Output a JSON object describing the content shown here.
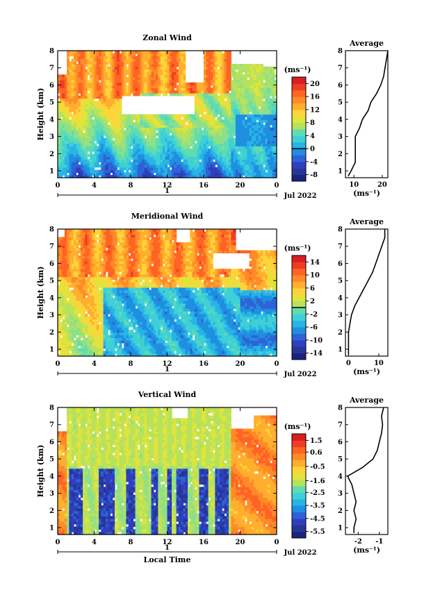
{
  "chart_data": [
    {
      "type": "heatmap",
      "title": "Zonal Wind",
      "ylabel": "Height (km)",
      "xlabel": "",
      "x_ticks": [
        "0",
        "4",
        "8",
        "12",
        "16",
        "20",
        "0"
      ],
      "y_ticks": [
        "1",
        "2",
        "3",
        "4",
        "5",
        "6",
        "7",
        "8"
      ],
      "xlim": [
        0,
        24
      ],
      "ylim": [
        0.6,
        8
      ],
      "date_marker": "1",
      "date_label": "Jul 2022",
      "colorbar": {
        "unit": "(ms⁻¹)",
        "ticks": [
          "20",
          "16",
          "12",
          "8",
          "4",
          "0",
          "-4",
          "-8"
        ],
        "range": [
          -10,
          22
        ],
        "zero_line": 0
      },
      "profile": {
        "title": "Average",
        "xlabel": "(ms⁻¹)",
        "x_ticks": [
          "10",
          "20"
        ],
        "xlim": [
          7,
          22
        ],
        "heights": [
          0.7,
          1.0,
          1.5,
          2.0,
          2.5,
          3.0,
          3.5,
          4.0,
          4.5,
          5.0,
          5.5,
          6.0,
          6.5,
          7.0,
          7.5,
          8.0
        ],
        "values": [
          8,
          9,
          10.5,
          10.5,
          10.5,
          10.5,
          12,
          13,
          15,
          16,
          18,
          19.5,
          20.5,
          21,
          21.5,
          22
        ]
      }
    },
    {
      "type": "heatmap",
      "title": "Meridional Wind",
      "ylabel": "Height (km)",
      "xlabel": "",
      "x_ticks": [
        "0",
        "4",
        "8",
        "12",
        "16",
        "20",
        "0"
      ],
      "y_ticks": [
        "1",
        "2",
        "3",
        "4",
        "5",
        "6",
        "7",
        "8"
      ],
      "xlim": [
        0,
        24
      ],
      "ylim": [
        0.6,
        8
      ],
      "date_marker": "1",
      "date_label": "Jul 2022",
      "colorbar": {
        "unit": "(ms⁻¹)",
        "ticks": [
          "14",
          "10",
          "6",
          "2",
          "-2",
          "-6",
          "-10",
          "-14"
        ],
        "range": [
          -16,
          16
        ],
        "zero_line": 0
      },
      "profile": {
        "title": "Average",
        "xlabel": "(ms⁻¹)",
        "x_ticks": [
          "0",
          "10"
        ],
        "xlim": [
          -1,
          13
        ],
        "heights": [
          0.7,
          1.0,
          1.5,
          2.0,
          2.5,
          3.0,
          3.5,
          4.0,
          4.5,
          5.0,
          5.5,
          6.0,
          6.5,
          7.0,
          7.5,
          8.0
        ],
        "values": [
          0,
          0,
          0,
          0,
          0.5,
          1,
          2,
          3.5,
          5,
          6.5,
          8,
          9,
          10,
          11,
          12,
          12
        ]
      }
    },
    {
      "type": "heatmap",
      "title": "Vertical Wind",
      "ylabel": "Height (km)",
      "xlabel": "Local Time",
      "x_ticks": [
        "0",
        "4",
        "8",
        "12",
        "16",
        "20",
        "0"
      ],
      "y_ticks": [
        "1",
        "2",
        "3",
        "4",
        "5",
        "6",
        "7",
        "8"
      ],
      "xlim": [
        0,
        24
      ],
      "ylim": [
        0.6,
        8
      ],
      "date_marker": "1",
      "date_label": "Jul 2022",
      "colorbar": {
        "unit": "(ms⁻¹)",
        "ticks": [
          "1.5",
          "0.6",
          "-0.5",
          "-1.6",
          "-2.5",
          "-3.5",
          "-4.5",
          "-5.5"
        ],
        "range": [
          -6,
          2
        ],
        "zero_line": null
      },
      "profile": {
        "title": "Average",
        "xlabel": "(ms⁻¹)",
        "x_ticks": [
          "-2",
          "-1"
        ],
        "xlim": [
          -2.6,
          -0.6
        ],
        "heights": [
          0.7,
          1.0,
          1.5,
          2.0,
          2.5,
          3.0,
          3.5,
          4.0,
          4.5,
          5.0,
          5.5,
          6.0,
          6.5,
          7.0,
          7.5,
          8.0
        ],
        "values": [
          -2.2,
          -2.2,
          -2.1,
          -2.2,
          -2.1,
          -2.2,
          -2.3,
          -2.5,
          -1.8,
          -1.3,
          -1.1,
          -1.0,
          -0.9,
          -0.85,
          -0.9,
          -0.8
        ]
      }
    }
  ]
}
